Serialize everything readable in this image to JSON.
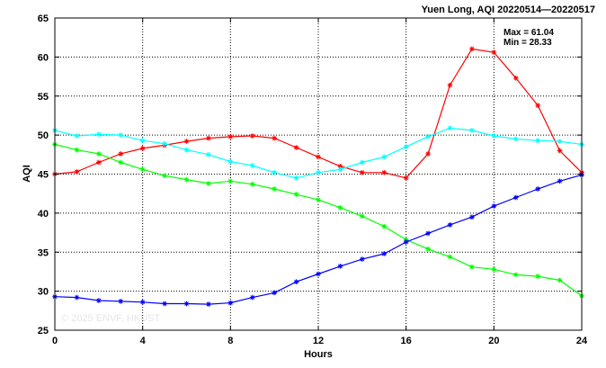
{
  "chart_data": {
    "type": "line",
    "title": "Yuen Long, AQI 20220514—20220517",
    "xlabel": "Hours",
    "ylabel": "AQI",
    "xlim": [
      0,
      24
    ],
    "ylim": [
      25,
      65
    ],
    "xticks": [
      0,
      4,
      8,
      12,
      16,
      20,
      24
    ],
    "yticks": [
      25,
      30,
      35,
      40,
      45,
      50,
      55,
      60,
      65
    ],
    "grid": true,
    "stats": {
      "max_label": "Max = 61.04",
      "min_label": "Min = 28.33"
    },
    "watermark": "© 2025  ENVF, HKUST",
    "x": [
      0,
      1,
      2,
      3,
      4,
      5,
      6,
      7,
      8,
      9,
      10,
      11,
      12,
      13,
      14,
      15,
      16,
      17,
      18,
      19,
      20,
      21,
      22,
      23,
      24
    ],
    "series": [
      {
        "color": "#ff0000",
        "values": [
          45.0,
          45.3,
          46.5,
          47.6,
          48.3,
          48.7,
          49.2,
          49.6,
          49.8,
          49.9,
          49.6,
          48.4,
          47.2,
          46.0,
          45.2,
          45.2,
          44.5,
          47.6,
          56.4,
          61.04,
          60.6,
          57.3,
          53.8,
          48.0,
          45.2
        ]
      },
      {
        "color": "#00ffff",
        "values": [
          50.6,
          49.9,
          50.1,
          50.0,
          49.3,
          48.9,
          48.1,
          47.5,
          46.6,
          46.1,
          45.2,
          44.5,
          45.2,
          45.6,
          46.5,
          47.2,
          48.5,
          49.8,
          50.9,
          50.6,
          49.9,
          49.5,
          49.3,
          49.2,
          48.8
        ]
      },
      {
        "color": "#00ff00",
        "values": [
          48.8,
          48.1,
          47.6,
          46.5,
          45.6,
          44.8,
          44.3,
          43.8,
          44.1,
          43.7,
          43.1,
          42.4,
          41.7,
          40.7,
          39.6,
          38.3,
          36.6,
          35.4,
          34.4,
          33.1,
          32.8,
          32.1,
          31.9,
          31.4,
          29.4
        ]
      },
      {
        "color": "#0000ff",
        "values": [
          29.3,
          29.2,
          28.8,
          28.7,
          28.6,
          28.4,
          28.4,
          28.33,
          28.5,
          29.2,
          29.8,
          31.2,
          32.2,
          33.2,
          34.1,
          34.8,
          36.3,
          37.4,
          38.5,
          39.5,
          40.9,
          42.0,
          43.1,
          44.1,
          44.9
        ]
      }
    ]
  }
}
